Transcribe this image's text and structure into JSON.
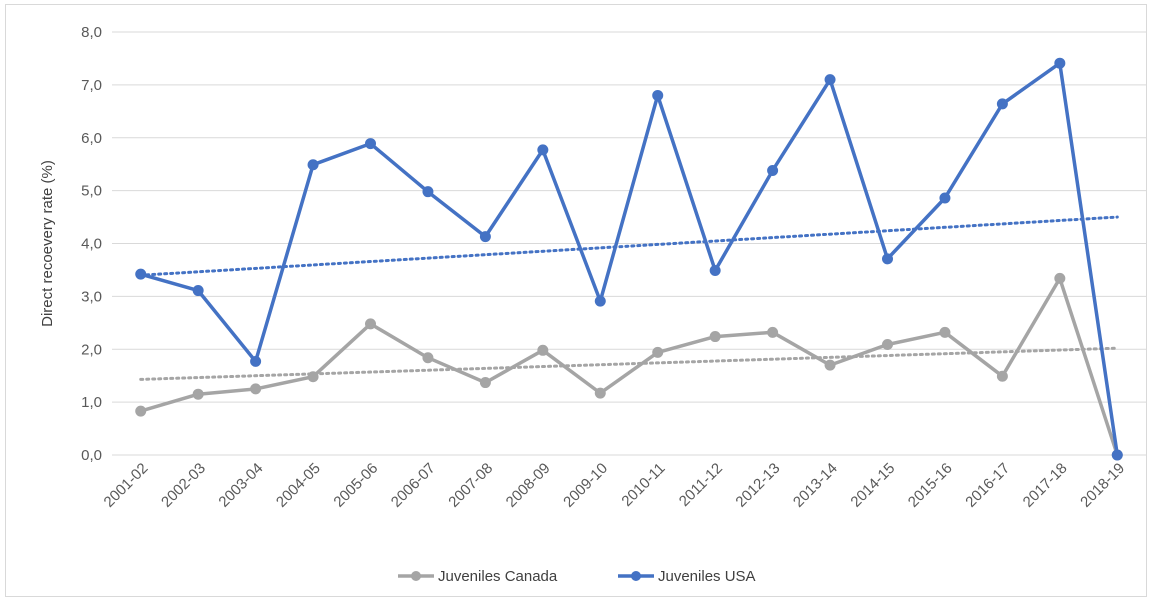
{
  "chart_data": {
    "type": "line",
    "ylabel": "Direct recoevery rate (%)",
    "xlabel": "",
    "ylim": [
      0,
      8
    ],
    "y_ticks": [
      "0,0",
      "1,0",
      "2,0",
      "3,0",
      "4,0",
      "5,0",
      "6,0",
      "7,0",
      "8,0"
    ],
    "categories": [
      "2001-02",
      "2002-03",
      "2003-04",
      "2004-05",
      "2005-06",
      "2006-07",
      "2007-08",
      "2008-09",
      "2009-10",
      "2010-11",
      "2011-12",
      "2012-13",
      "2013-14",
      "2014-15",
      "2015-16",
      "2016-17",
      "2017-18",
      "2018-19"
    ],
    "grid": true,
    "legend_position": "bottom",
    "series": [
      {
        "name": "Juveniles Canada",
        "color": "#a5a5a5",
        "values": [
          0.83,
          1.15,
          1.25,
          1.48,
          2.48,
          1.84,
          1.37,
          1.98,
          1.17,
          1.94,
          2.24,
          2.32,
          1.7,
          2.09,
          2.32,
          1.49,
          3.34,
          0.0
        ],
        "trendline": {
          "style": "dotted",
          "start": 1.43,
          "end": 2.02
        }
      },
      {
        "name": "Juveniles USA",
        "color": "#4472c4",
        "values": [
          3.42,
          3.11,
          1.77,
          5.49,
          5.89,
          4.98,
          4.13,
          5.77,
          2.91,
          6.8,
          3.49,
          5.38,
          7.1,
          3.71,
          4.86,
          6.64,
          7.41,
          0.0
        ],
        "trendline": {
          "style": "dotted",
          "start": 3.4,
          "end": 4.5
        }
      }
    ]
  }
}
